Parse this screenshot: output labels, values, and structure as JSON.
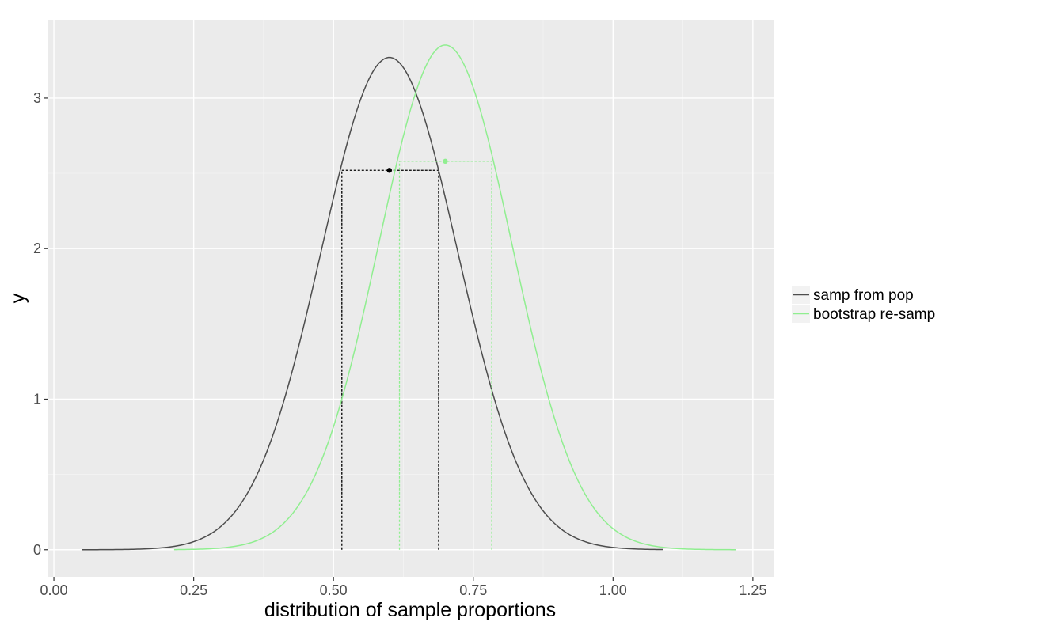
{
  "chart_data": {
    "type": "line",
    "title": "",
    "xlabel": "distribution of sample proportions",
    "ylabel": "y",
    "xlim": [
      -0.01,
      1.287
    ],
    "ylim": [
      -0.18,
      3.52
    ],
    "x_ticks": [
      0.0,
      0.25,
      0.5,
      0.75,
      1.0,
      1.25
    ],
    "x_tick_labels": [
      "0.00",
      "0.25",
      "0.50",
      "0.75",
      "1.00",
      "1.25"
    ],
    "y_ticks": [
      0,
      1,
      2,
      3
    ],
    "y_tick_labels": [
      "0",
      "1",
      "2",
      "3"
    ],
    "grid": true,
    "background": "#ebebeb",
    "legend_position": "right",
    "series": [
      {
        "name": "samp from pop",
        "color": "#4d4d4d",
        "curve": "normal",
        "mean": 0.6,
        "sd": 0.122,
        "x_range": [
          0.05,
          1.09
        ],
        "point": [
          0.6,
          2.52
        ],
        "interval": [
          0.515,
          0.688
        ],
        "interval_color": "#000000"
      },
      {
        "name": "bootstrap re-samp",
        "color": "#90ee90",
        "curve": "normal",
        "mean": 0.7,
        "sd": 0.119,
        "x_range": [
          0.215,
          1.22
        ],
        "point": [
          0.7,
          2.58
        ],
        "interval": [
          0.618,
          0.783
        ],
        "interval_color": "#90ee90"
      }
    ]
  }
}
